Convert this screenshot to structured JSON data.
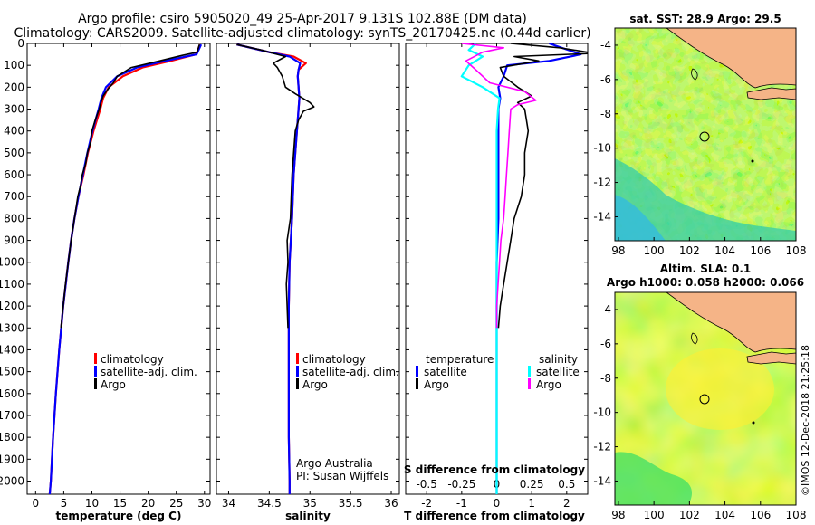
{
  "title_line1": "Argo profile: csiro 5905020_49 25-Apr-2017 9.131S 102.88E (DM data)",
  "title_line2": "Climatology: CARS2009. Satellite-adjusted climatology: synTS_20170425.nc (0.44d earlier)",
  "credit": "©IMOS 12-Dec-2018 21:25:18",
  "attribution": [
    "Argo Australia",
    "PI: Susan Wijffels"
  ],
  "colors": {
    "climatology": "#ff0000",
    "satellite": "#0000ff",
    "argo": "#000000",
    "argo_salinity": "#ff00ff",
    "satellite_salinity": "#00ffff",
    "land": "#f5b487"
  },
  "chart_data": [
    {
      "type": "line",
      "xlabel": "temperature (deg C)",
      "xlim": [
        -1.5,
        31
      ],
      "xticks": [
        0,
        5,
        10,
        15,
        20,
        25,
        30
      ],
      "ylim": [
        0,
        2060
      ],
      "yticks": [
        0,
        100,
        200,
        300,
        400,
        500,
        600,
        700,
        800,
        900,
        1000,
        1100,
        1200,
        1300,
        1400,
        1500,
        1600,
        1700,
        1800,
        1900,
        2000
      ],
      "yreversed": true,
      "legend": [
        "climatology",
        "satellite-adj. clim.",
        "Argo"
      ],
      "series": [
        {
          "name": "climatology",
          "depth": [
            5,
            50,
            80,
            110,
            150,
            200,
            250,
            300,
            400,
            500,
            600,
            700,
            800,
            900,
            1000,
            1200,
            1400,
            1600,
            1800,
            2000,
            2060
          ],
          "values": [
            29.2,
            28.5,
            24,
            19,
            15.5,
            13,
            12,
            11.5,
            10.3,
            9.3,
            8.5,
            7.6,
            6.9,
            6.3,
            5.8,
            4.9,
            4.2,
            3.6,
            3.1,
            2.7,
            2.5
          ]
        },
        {
          "name": "satellite-adj. clim.",
          "depth": [
            5,
            50,
            80,
            110,
            150,
            200,
            250,
            300,
            400,
            500,
            600,
            700,
            800,
            900,
            1000,
            1200,
            1400,
            1600,
            1800,
            2000,
            2060
          ],
          "values": [
            29.4,
            28.6,
            23,
            18,
            14.5,
            12.5,
            11.7,
            11.2,
            10.1,
            9.2,
            8.4,
            7.6,
            6.9,
            6.3,
            5.8,
            4.9,
            4.2,
            3.6,
            3.1,
            2.7,
            2.5
          ]
        },
        {
          "name": "Argo",
          "depth": [
            5,
            40,
            55,
            80,
            110,
            150,
            180,
            210,
            240,
            270,
            300,
            350,
            400,
            450,
            500,
            550,
            600,
            650,
            700,
            750,
            800,
            900,
            1000,
            1100,
            1200,
            1300
          ],
          "values": [
            29.1,
            28.7,
            26,
            22,
            17,
            14.5,
            13.8,
            12.8,
            12,
            11.6,
            11.3,
            10.6,
            10,
            9.8,
            9.2,
            8.9,
            8.3,
            8,
            7.5,
            7.2,
            6.9,
            6.3,
            5.8,
            5.3,
            4.9,
            4.5
          ]
        }
      ]
    },
    {
      "type": "line",
      "xlabel": "salinity",
      "xlim": [
        33.85,
        36.1
      ],
      "xticks": [
        34,
        34.5,
        35,
        35.5,
        36
      ],
      "ylim": [
        0,
        2060
      ],
      "yreversed": true,
      "legend": [
        "climatology",
        "satellite-adj. clim.",
        "Argo"
      ],
      "series": [
        {
          "name": "climatology",
          "depth": [
            5,
            40,
            60,
            90,
            120,
            150,
            200,
            250,
            300,
            400,
            500,
            600,
            700,
            800,
            1000,
            1200,
            1400,
            1600,
            1800,
            2000,
            2060
          ],
          "values": [
            34.1,
            34.5,
            34.8,
            34.95,
            34.86,
            34.85,
            34.86,
            34.87,
            34.86,
            34.84,
            34.82,
            34.8,
            34.79,
            34.78,
            34.75,
            34.74,
            34.74,
            34.74,
            34.74,
            34.75,
            34.75
          ]
        },
        {
          "name": "satellite-adj. clim.",
          "depth": [
            5,
            40,
            60,
            90,
            120,
            150,
            200,
            250,
            300,
            400,
            500,
            600,
            700,
            800,
            1000,
            1200,
            1400,
            1600,
            1800,
            2000,
            2060
          ],
          "values": [
            34.1,
            34.5,
            34.75,
            34.88,
            34.86,
            34.85,
            34.86,
            34.87,
            34.86,
            34.84,
            34.82,
            34.8,
            34.79,
            34.78,
            34.75,
            34.74,
            34.74,
            34.74,
            34.74,
            34.75,
            34.75
          ]
        },
        {
          "name": "Argo",
          "depth": [
            5,
            30,
            60,
            90,
            110,
            150,
            200,
            230,
            270,
            290,
            310,
            350,
            400,
            500,
            600,
            700,
            800,
            900,
            1000,
            1100,
            1200,
            1300
          ],
          "values": [
            34.1,
            34.4,
            34.7,
            34.55,
            34.6,
            34.66,
            34.7,
            34.82,
            35.0,
            35.05,
            34.92,
            34.86,
            34.82,
            34.8,
            34.78,
            34.77,
            34.76,
            34.72,
            34.73,
            34.71,
            34.72,
            34.73
          ]
        }
      ]
    },
    {
      "type": "line",
      "xlabel": "T difference from climatology",
      "xlabel2": "S difference from climatology",
      "xlim": [
        -2.6,
        2.6
      ],
      "xticks": [
        -2,
        -1,
        0,
        1,
        2
      ],
      "xticks2": [
        -0.5,
        -0.25,
        0,
        0.25,
        0.5
      ],
      "ylim": [
        0,
        2060
      ],
      "yreversed": true,
      "legend_temperature_title": "temperature",
      "legend_salinity_title": "salinity",
      "legend_temperature": [
        "satellite",
        "Argo"
      ],
      "legend_salinity": [
        "satellite",
        "Argo"
      ],
      "series": [
        {
          "name": "satellite",
          "depth": [
            0,
            50,
            80,
            100,
            150,
            200,
            250,
            300,
            400,
            500,
            600,
            800,
            1000,
            1200,
            1500,
            2060
          ],
          "values": [
            1.5,
            2.4,
            1.5,
            0.3,
            0.2,
            0.05,
            0.1,
            0.05,
            0.05,
            0.05,
            0.05,
            0.05,
            0,
            0,
            0,
            0
          ]
        },
        {
          "name": "Argo",
          "depth": [
            0,
            20,
            45,
            60,
            80,
            110,
            150,
            200,
            240,
            270,
            300,
            400,
            500,
            600,
            700,
            800,
            900,
            1000,
            1100,
            1200,
            1300
          ],
          "values": [
            0.4,
            1.8,
            2.8,
            0.5,
            1.2,
            0.1,
            0.2,
            0.6,
            1.0,
            0.6,
            0.8,
            0.9,
            0.8,
            0.8,
            0.7,
            0.5,
            0.4,
            0.3,
            0.2,
            0.1,
            0.05
          ]
        },
        {
          "name": "satellite salinity",
          "depth": [
            0,
            30,
            60,
            100,
            150,
            200,
            250,
            300,
            400,
            600,
            800,
            1000,
            1500,
            2060
          ],
          "values": [
            -0.15,
            -0.2,
            -0.1,
            -0.2,
            -0.25,
            -0.1,
            0.02,
            0.01,
            0,
            0,
            0,
            0,
            0,
            0
          ]
        },
        {
          "name": "Argo salinity",
          "depth": [
            0,
            20,
            40,
            80,
            120,
            180,
            220,
            260,
            280,
            300,
            400,
            500,
            600,
            700,
            800,
            900,
            1000,
            1100,
            1200,
            1300
          ],
          "values": [
            -0.25,
            0.05,
            -0.1,
            -0.22,
            -0.15,
            -0.05,
            0.2,
            0.28,
            0.15,
            0.1,
            0.09,
            0.08,
            0.07,
            0.06,
            0.05,
            0.03,
            0.02,
            0.01,
            0,
            0
          ]
        }
      ]
    }
  ],
  "maps": [
    {
      "title": "sat. SST: 28.9 Argo: 29.5",
      "lon_ticks": [
        "98",
        "100",
        "102",
        "104",
        "106",
        "108"
      ],
      "lat_ticks": [
        "-4",
        "-6",
        "-8",
        "-10",
        "-12",
        "-14"
      ]
    },
    {
      "title_line1": "Altim. SLA: 0.1",
      "title_line2": "Argo h1000: 0.058 h2000: 0.066",
      "lon_ticks": [
        "98",
        "100",
        "102",
        "104",
        "106",
        "108"
      ],
      "lat_ticks": [
        "-4",
        "-6",
        "-8",
        "-10",
        "-12",
        "-14"
      ]
    }
  ]
}
